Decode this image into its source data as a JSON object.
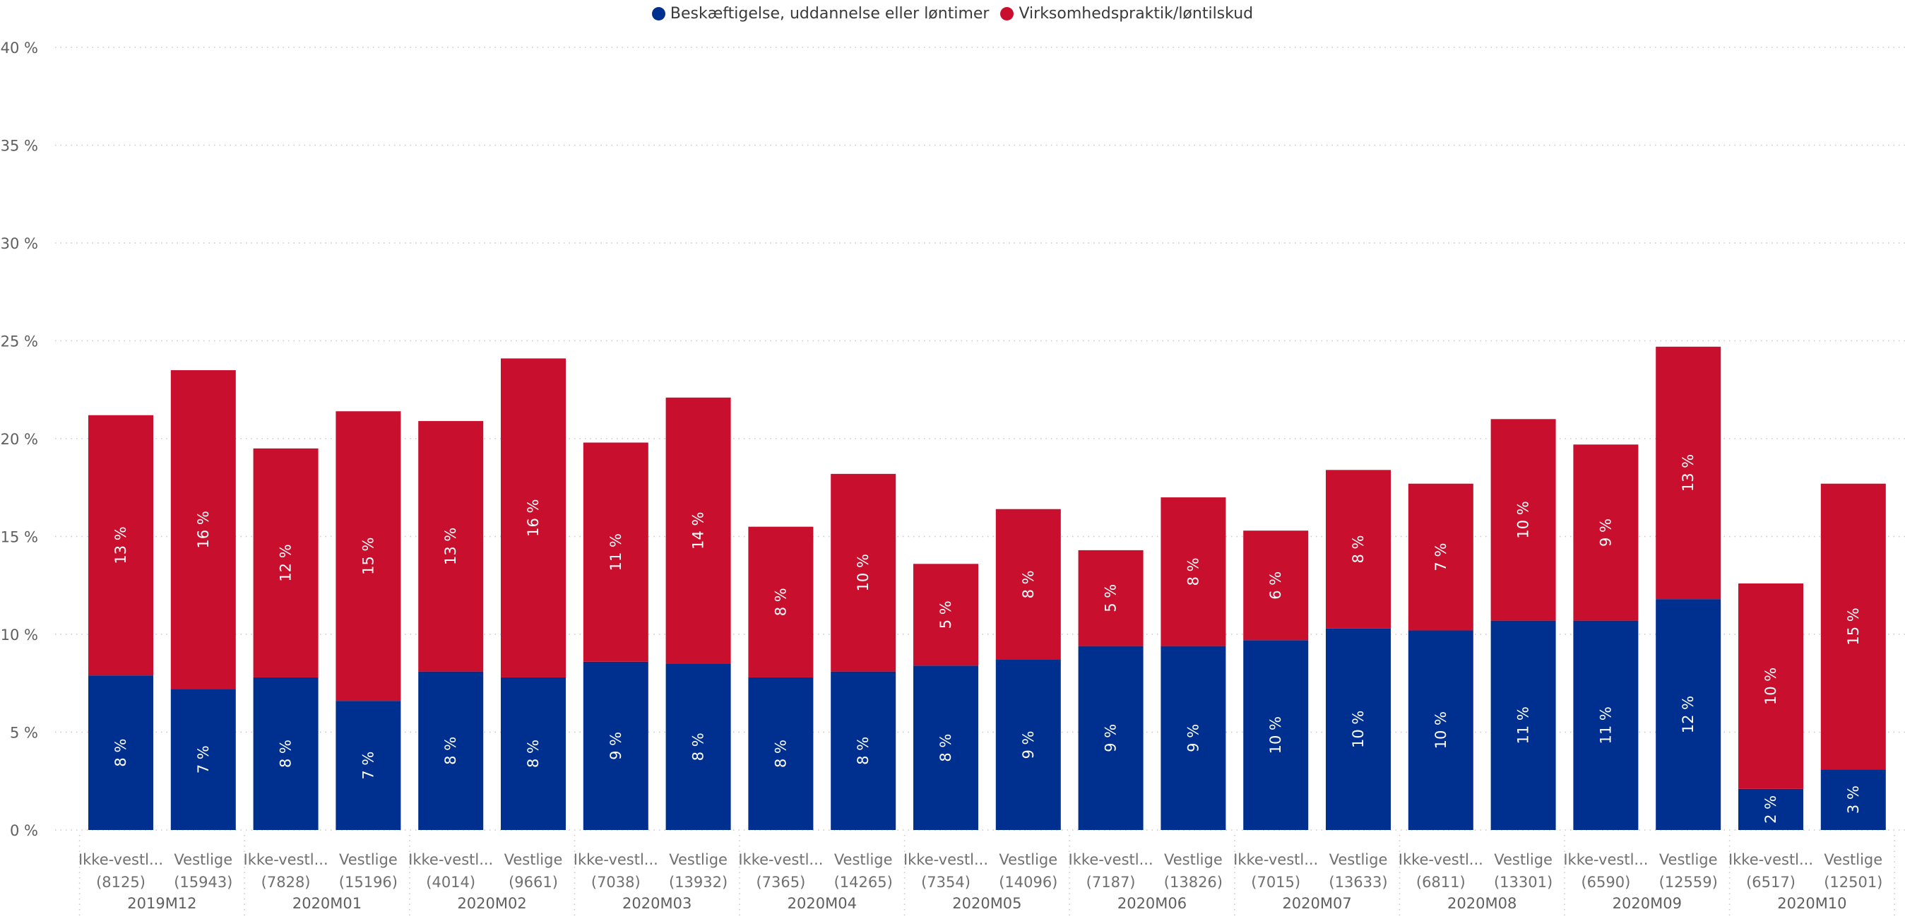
{
  "legend": {
    "items": [
      {
        "label": "Beskæftigelse, uddannelse eller løntimer",
        "color": "#00308f"
      },
      {
        "label": "Virksomhedspraktik/løntilskud",
        "color": "#c8102e"
      }
    ]
  },
  "chart_data": {
    "type": "bar",
    "stacked": true,
    "ylim": [
      0,
      40
    ],
    "yticks": [
      "0 %",
      "5 %",
      "10 %",
      "15 %",
      "20 %",
      "25 %",
      "30 %",
      "35 %",
      "40 %"
    ],
    "ytick_values": [
      0,
      5,
      10,
      15,
      20,
      25,
      30,
      35,
      40
    ],
    "grid": true,
    "legend_position": "top-center",
    "groups": [
      "2019M12",
      "2020M01",
      "2020M02",
      "2020M03",
      "2020M04",
      "2020M05",
      "2020M06",
      "2020M07",
      "2020M08",
      "2020M09",
      "2020M10"
    ],
    "categories": [
      {
        "group": "2019M12",
        "label": "Ikke-vestl...",
        "count": "(8125)"
      },
      {
        "group": "2019M12",
        "label": "Vestlige",
        "count": "(15943)"
      },
      {
        "group": "2020M01",
        "label": "Ikke-vestl...",
        "count": "(7828)"
      },
      {
        "group": "2020M01",
        "label": "Vestlige",
        "count": "(15196)"
      },
      {
        "group": "2020M02",
        "label": "Ikke-vestl...",
        "count": "(4014)"
      },
      {
        "group": "2020M02",
        "label": "Vestlige",
        "count": "(9661)"
      },
      {
        "group": "2020M03",
        "label": "Ikke-vestl...",
        "count": "(7038)"
      },
      {
        "group": "2020M03",
        "label": "Vestlige",
        "count": "(13932)"
      },
      {
        "group": "2020M04",
        "label": "Ikke-vestl...",
        "count": "(7365)"
      },
      {
        "group": "2020M04",
        "label": "Vestlige",
        "count": "(14265)"
      },
      {
        "group": "2020M05",
        "label": "Ikke-vestl...",
        "count": "(7354)"
      },
      {
        "group": "2020M05",
        "label": "Vestlige",
        "count": "(14096)"
      },
      {
        "group": "2020M06",
        "label": "Ikke-vestl...",
        "count": "(7187)"
      },
      {
        "group": "2020M06",
        "label": "Vestlige",
        "count": "(13826)"
      },
      {
        "group": "2020M07",
        "label": "Ikke-vestl...",
        "count": "(7015)"
      },
      {
        "group": "2020M07",
        "label": "Vestlige",
        "count": "(13633)"
      },
      {
        "group": "2020M08",
        "label": "Ikke-vestl...",
        "count": "(6811)"
      },
      {
        "group": "2020M08",
        "label": "Vestlige",
        "count": "(13301)"
      },
      {
        "group": "2020M09",
        "label": "Ikke-vestl...",
        "count": "(6590)"
      },
      {
        "group": "2020M09",
        "label": "Vestlige",
        "count": "(12559)"
      },
      {
        "group": "2020M10",
        "label": "Ikke-vestl...",
        "count": "(6517)"
      },
      {
        "group": "2020M10",
        "label": "Vestlige",
        "count": "(12501)"
      }
    ],
    "series": [
      {
        "name": "Beskæftigelse, uddannelse eller løntimer",
        "color": "#00308f",
        "values": [
          7.9,
          7.2,
          7.8,
          6.6,
          8.1,
          7.8,
          8.6,
          8.5,
          7.8,
          8.1,
          8.4,
          8.7,
          9.4,
          9.4,
          9.7,
          10.3,
          10.2,
          10.7,
          10.7,
          11.8,
          2.1,
          3.1
        ],
        "labels": [
          "8 %",
          "7 %",
          "8 %",
          "7 %",
          "8 %",
          "8 %",
          "9 %",
          "8 %",
          "8 %",
          "8 %",
          "8 %",
          "9 %",
          "9 %",
          "9 %",
          "10 %",
          "10 %",
          "10 %",
          "11 %",
          "11 %",
          "12 %",
          "2 %",
          "3 %"
        ]
      },
      {
        "name": "Virksomhedspraktik/løntilskud",
        "color": "#c8102e",
        "values": [
          13.3,
          16.3,
          11.7,
          14.8,
          12.8,
          16.3,
          11.2,
          13.6,
          7.7,
          10.1,
          5.2,
          7.7,
          4.9,
          7.6,
          5.6,
          8.1,
          7.5,
          10.3,
          9.0,
          12.9,
          10.5,
          14.6
        ],
        "labels": [
          "13 %",
          "16 %",
          "12 %",
          "15 %",
          "13 %",
          "16 %",
          "11 %",
          "14 %",
          "8 %",
          "10 %",
          "5 %",
          "8 %",
          "5 %",
          "8 %",
          "6 %",
          "8 %",
          "7 %",
          "10 %",
          "9 %",
          "13 %",
          "10 %",
          "15 %"
        ]
      }
    ]
  }
}
